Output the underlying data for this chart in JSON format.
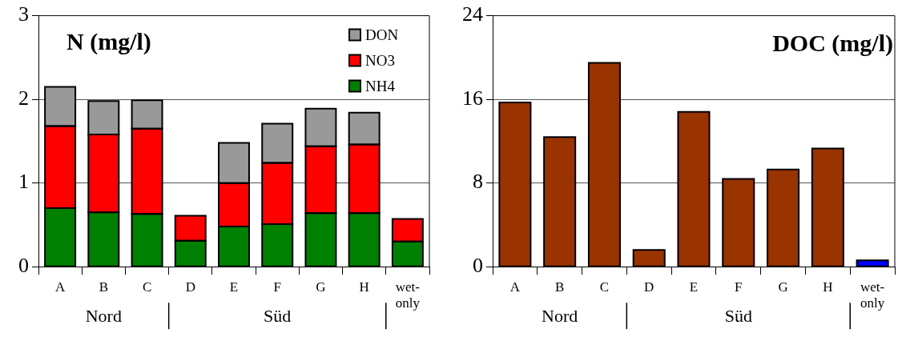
{
  "chart_data": [
    {
      "type": "bar",
      "title": "N (mg/l)",
      "categories": [
        "A",
        "B",
        "C",
        "D",
        "E",
        "F",
        "G",
        "H",
        "wet-only"
      ],
      "stacked": true,
      "ylim": [
        0,
        3
      ],
      "yticks": [
        0,
        1,
        2,
        3
      ],
      "grid": "y",
      "legend": "top right",
      "annotations": [
        "Nord",
        "Süd"
      ],
      "series": [
        {
          "name": "NH4",
          "color": "#008000",
          "values": [
            0.7,
            0.65,
            0.63,
            0.31,
            0.48,
            0.51,
            0.64,
            0.64,
            0.3
          ]
        },
        {
          "name": "NO3",
          "color": "#ff0000",
          "values": [
            0.98,
            0.93,
            1.02,
            0.3,
            0.52,
            0.73,
            0.8,
            0.82,
            0.27
          ]
        },
        {
          "name": "DON",
          "color": "#999999",
          "values": [
            0.47,
            0.4,
            0.34,
            null,
            0.48,
            0.47,
            0.45,
            0.38,
            0
          ]
        }
      ]
    },
    {
      "type": "bar",
      "title": "DOC (mg/l)",
      "categories": [
        "A",
        "B",
        "C",
        "D",
        "E",
        "F",
        "G",
        "H",
        "wet-only"
      ],
      "ylim": [
        0,
        24
      ],
      "yticks": [
        0,
        8,
        16,
        24
      ],
      "grid": "y",
      "annotations": [
        "Nord",
        "Süd"
      ],
      "series": [
        {
          "colors": [
            "#993300",
            "#993300",
            "#993300",
            "#993300",
            "#993300",
            "#993300",
            "#993300",
            "#993300",
            "#0000ff"
          ],
          "values": [
            15.7,
            12.4,
            19.5,
            1.6,
            14.8,
            8.4,
            9.3,
            11.3,
            0.6
          ]
        }
      ]
    }
  ]
}
